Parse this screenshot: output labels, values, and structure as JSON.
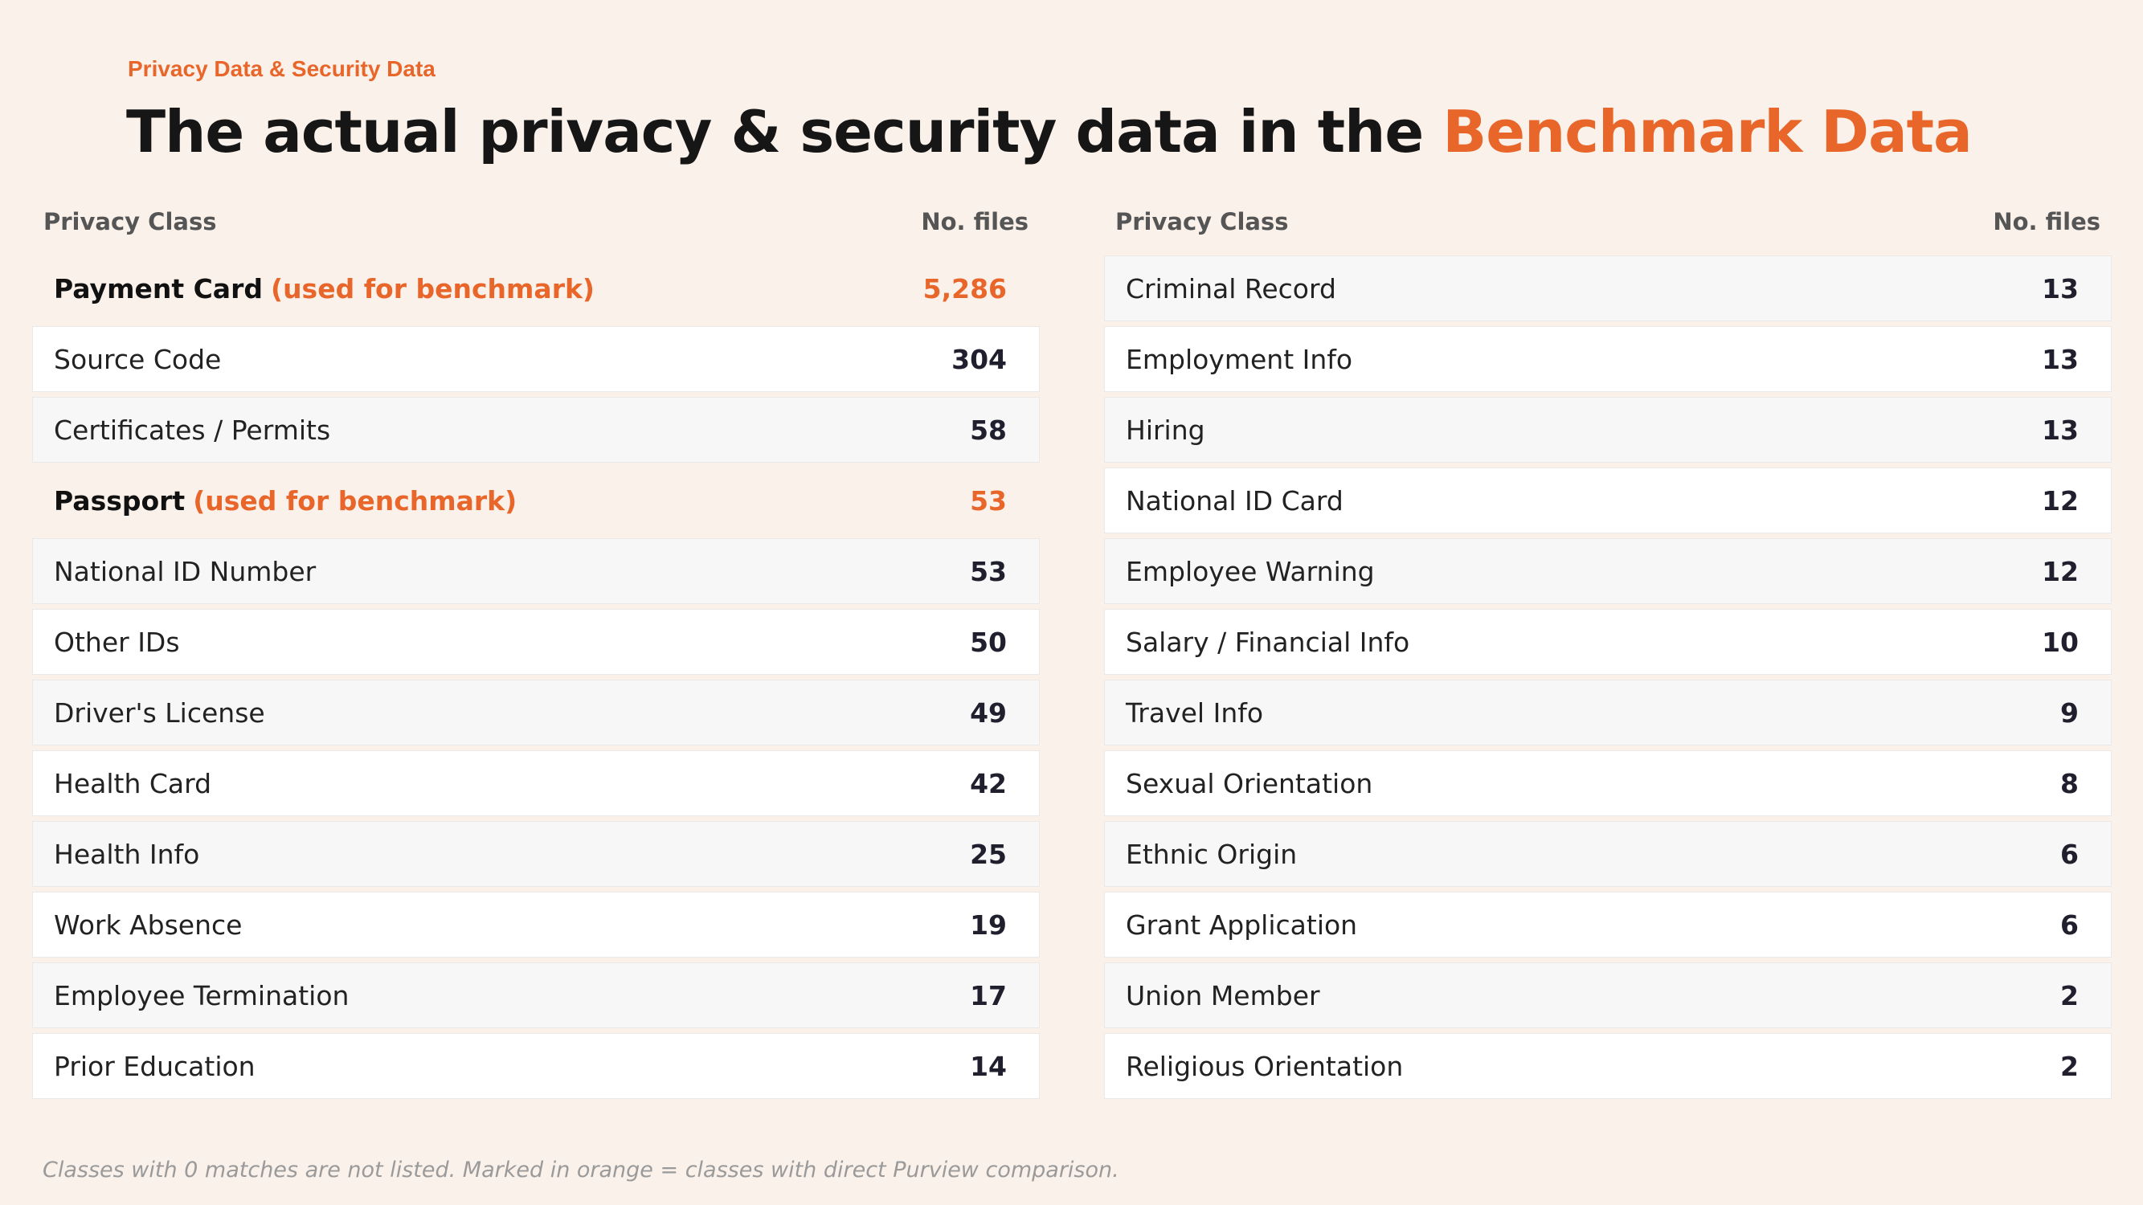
{
  "header": {
    "eyebrow": "Privacy Data & Security Data",
    "title_main": "The actual privacy & security data in the ",
    "title_accent": "Benchmark Data"
  },
  "columns": {
    "class": "Privacy Class",
    "files": "No. files"
  },
  "left_rows": [
    {
      "label": "Payment Card",
      "note": "(used for benchmark)",
      "value": "5,286",
      "highlight": true
    },
    {
      "label": "Source Code",
      "note": "",
      "value": "304",
      "highlight": false
    },
    {
      "label": "Certificates / Permits",
      "note": "",
      "value": "58",
      "highlight": false
    },
    {
      "label": "Passport",
      "note": "(used for benchmark)",
      "value": "53",
      "highlight": true
    },
    {
      "label": "National ID Number",
      "note": "",
      "value": "53",
      "highlight": false
    },
    {
      "label": "Other IDs",
      "note": "",
      "value": "50",
      "highlight": false
    },
    {
      "label": "Driver's License",
      "note": "",
      "value": "49",
      "highlight": false
    },
    {
      "label": "Health Card",
      "note": "",
      "value": "42",
      "highlight": false
    },
    {
      "label": "Health Info",
      "note": "",
      "value": "25",
      "highlight": false
    },
    {
      "label": "Work Absence",
      "note": "",
      "value": "19",
      "highlight": false
    },
    {
      "label": "Employee Termination",
      "note": "",
      "value": "17",
      "highlight": false
    },
    {
      "label": "Prior Education",
      "note": "",
      "value": "14",
      "highlight": false
    }
  ],
  "right_rows": [
    {
      "label": "Criminal Record",
      "note": "",
      "value": "13",
      "highlight": false
    },
    {
      "label": "Employment Info",
      "note": "",
      "value": "13",
      "highlight": false
    },
    {
      "label": "Hiring",
      "note": "",
      "value": "13",
      "highlight": false
    },
    {
      "label": "National ID Card",
      "note": "",
      "value": "12",
      "highlight": false
    },
    {
      "label": "Employee Warning",
      "note": "",
      "value": "12",
      "highlight": false
    },
    {
      "label": "Salary / Financial Info",
      "note": "",
      "value": "10",
      "highlight": false
    },
    {
      "label": "Travel Info",
      "note": "",
      "value": "9",
      "highlight": false
    },
    {
      "label": "Sexual Orientation",
      "note": "",
      "value": "8",
      "highlight": false
    },
    {
      "label": "Ethnic Origin",
      "note": "",
      "value": "6",
      "highlight": false
    },
    {
      "label": "Grant Application",
      "note": "",
      "value": "6",
      "highlight": false
    },
    {
      "label": "Union Member",
      "note": "",
      "value": "2",
      "highlight": false
    },
    {
      "label": "Religious Orientation",
      "note": "",
      "value": "2",
      "highlight": false
    }
  ],
  "footnote": "Classes with 0 matches are not listed. Marked in orange = classes with direct Purview comparison.",
  "colors": {
    "accent": "#E8662A",
    "background": "#FAF1EB",
    "title": "#161616"
  }
}
